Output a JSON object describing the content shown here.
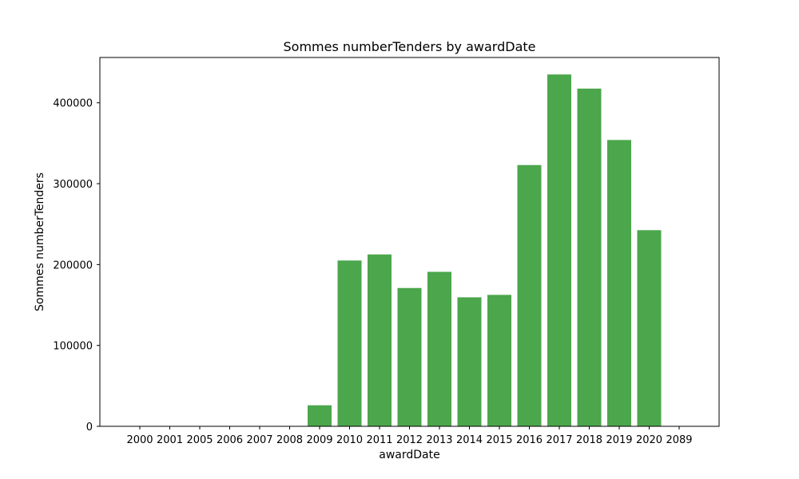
{
  "chart_data": {
    "type": "bar",
    "title": "Sommes numberTenders by awardDate",
    "xlabel": "awardDate",
    "ylabel": "Sommes numberTenders",
    "categories": [
      "2000",
      "2001",
      "2005",
      "2006",
      "2007",
      "2008",
      "2009",
      "2010",
      "2011",
      "2012",
      "2013",
      "2014",
      "2015",
      "2016",
      "2017",
      "2018",
      "2019",
      "2020",
      "2089"
    ],
    "values": [
      200,
      100,
      300,
      300,
      400,
      500,
      26000,
      205000,
      212500,
      171000,
      191000,
      159500,
      162500,
      323000,
      435000,
      417500,
      354000,
      242500,
      100
    ],
    "ylim": [
      0,
      456000
    ],
    "yticks": [
      0,
      100000,
      200000,
      300000,
      400000
    ],
    "bar_color": "#4ca64c",
    "grid": false,
    "legend": "none"
  }
}
